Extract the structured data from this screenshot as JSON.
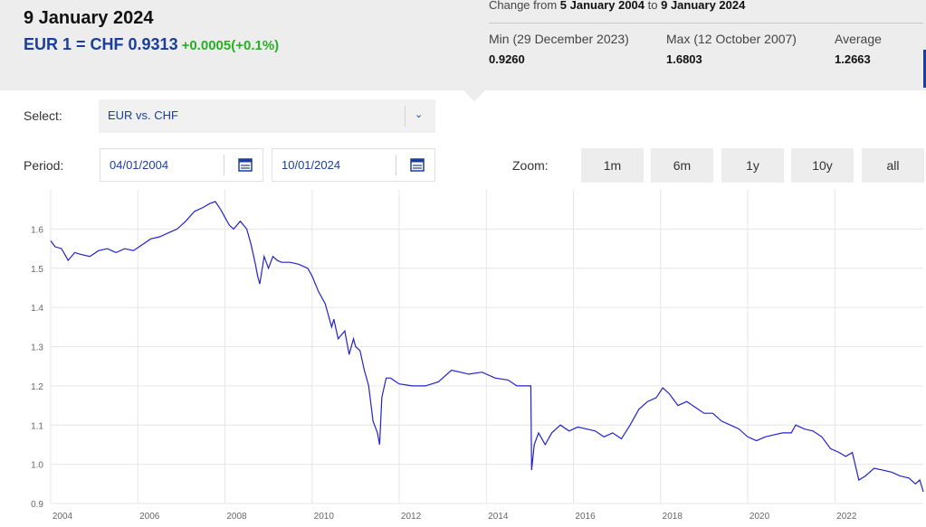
{
  "header": {
    "date_title": "9 January 2024",
    "rate": "EUR 1 = CHF 0.9313",
    "rate_change": "+0.0005(+0.1%)",
    "change_from_prefix": "Change from",
    "change_from_start": "5 January 2004",
    "change_from_to": "to",
    "change_from_end": "9 January 2024",
    "stats": {
      "min_label": "Min (29 December 2023)",
      "min_value": "0.9260",
      "max_label": "Max (12 October 2007)",
      "max_value": "1.6803",
      "avg_label": "Average",
      "avg_value": "1.2663"
    }
  },
  "controls": {
    "select_label": "Select:",
    "select_value": "EUR vs. CHF",
    "period_label": "Period:",
    "period_start": "04/01/2004",
    "period_end": "10/01/2024",
    "zoom_label": "Zoom:",
    "zoom_options": [
      "1m",
      "6m",
      "1y",
      "10y",
      "all"
    ]
  },
  "colors": {
    "accent": "#1b3e9c",
    "positive": "#27b023",
    "line": "#2222cc",
    "header_bg": "#ededed"
  },
  "icons": {
    "calendar": "calendar-icon",
    "dropdown": "chevron-down-icon"
  },
  "chart_data": {
    "type": "line",
    "title": "",
    "xlabel": "",
    "ylabel": "",
    "xlim": [
      2004.0,
      2024.03
    ],
    "ylim": [
      0.9,
      1.7
    ],
    "grid": true,
    "x_ticks": [
      "2004",
      "2006",
      "2008",
      "2010",
      "2012",
      "2014",
      "2016",
      "2018",
      "2020",
      "2022"
    ],
    "y_ticks": [
      "0.9",
      "1.0",
      "1.1",
      "1.2",
      "1.3",
      "1.4",
      "1.5",
      "1.6"
    ],
    "series": [
      {
        "x": [
          2004.0,
          2004.1,
          2004.25,
          2004.4,
          2004.55,
          2004.7,
          2004.9,
          2005.1,
          2005.3,
          2005.5,
          2005.7,
          2005.9,
          2006.1,
          2006.3,
          2006.5,
          2006.7,
          2006.9,
          2007.1,
          2007.3,
          2007.5,
          2007.65,
          2007.78,
          2007.9,
          2008.0,
          2008.1,
          2008.2,
          2008.35,
          2008.5,
          2008.6,
          2008.7,
          2008.75,
          2008.8,
          2008.9,
          2009.0,
          2009.1,
          2009.2,
          2009.3,
          2009.5,
          2009.7,
          2009.9,
          2010.0,
          2010.15,
          2010.3,
          2010.45,
          2010.5,
          2010.6,
          2010.75,
          2010.85,
          2010.95,
          2011.0,
          2011.1,
          2011.2,
          2011.3,
          2011.4,
          2011.5,
          2011.55,
          2011.6,
          2011.7,
          2011.8,
          2012.0,
          2012.3,
          2012.6,
          2012.9,
          2013.2,
          2013.4,
          2013.6,
          2013.9,
          2014.2,
          2014.5,
          2014.7,
          2014.9,
          2015.02,
          2015.04,
          2015.1,
          2015.2,
          2015.35,
          2015.5,
          2015.7,
          2015.9,
          2016.1,
          2016.3,
          2016.5,
          2016.7,
          2016.9,
          2017.1,
          2017.3,
          2017.5,
          2017.7,
          2017.9,
          2018.05,
          2018.2,
          2018.4,
          2018.6,
          2018.8,
          2019.0,
          2019.2,
          2019.4,
          2019.6,
          2019.8,
          2020.0,
          2020.2,
          2020.4,
          2020.6,
          2020.8,
          2021.0,
          2021.1,
          2021.3,
          2021.5,
          2021.7,
          2021.9,
          2022.1,
          2022.25,
          2022.4,
          2022.55,
          2022.7,
          2022.9,
          2023.1,
          2023.3,
          2023.5,
          2023.7,
          2023.85,
          2023.95,
          2024.03
        ],
        "y": [
          1.57,
          1.555,
          1.55,
          1.52,
          1.54,
          1.535,
          1.53,
          1.545,
          1.55,
          1.54,
          1.55,
          1.545,
          1.56,
          1.575,
          1.58,
          1.59,
          1.6,
          1.62,
          1.645,
          1.655,
          1.665,
          1.67,
          1.65,
          1.63,
          1.61,
          1.6,
          1.62,
          1.6,
          1.56,
          1.51,
          1.48,
          1.46,
          1.53,
          1.5,
          1.53,
          1.52,
          1.515,
          1.515,
          1.51,
          1.5,
          1.48,
          1.44,
          1.41,
          1.35,
          1.37,
          1.32,
          1.34,
          1.28,
          1.32,
          1.3,
          1.29,
          1.24,
          1.2,
          1.11,
          1.08,
          1.05,
          1.17,
          1.22,
          1.22,
          1.205,
          1.2,
          1.2,
          1.21,
          1.24,
          1.235,
          1.23,
          1.235,
          1.22,
          1.215,
          1.2,
          1.2,
          1.2,
          0.985,
          1.05,
          1.08,
          1.05,
          1.08,
          1.1,
          1.085,
          1.095,
          1.09,
          1.085,
          1.07,
          1.08,
          1.065,
          1.1,
          1.14,
          1.16,
          1.17,
          1.195,
          1.18,
          1.15,
          1.16,
          1.145,
          1.13,
          1.13,
          1.11,
          1.1,
          1.09,
          1.07,
          1.06,
          1.07,
          1.075,
          1.08,
          1.08,
          1.1,
          1.09,
          1.085,
          1.07,
          1.04,
          1.03,
          1.02,
          1.03,
          0.96,
          0.97,
          0.99,
          0.985,
          0.98,
          0.97,
          0.965,
          0.95,
          0.96,
          0.93
        ]
      }
    ]
  }
}
